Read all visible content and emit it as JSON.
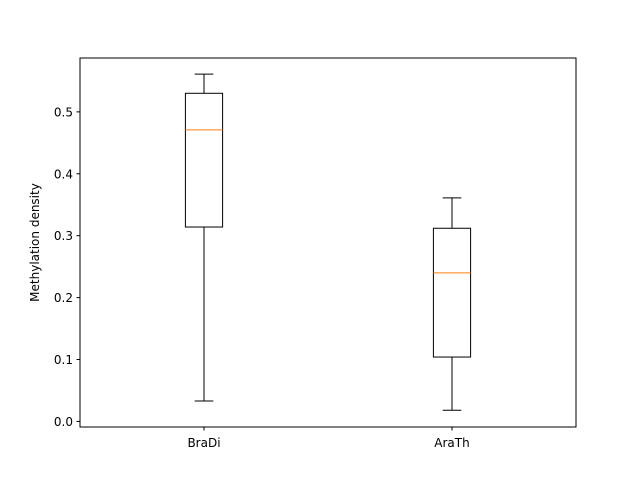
{
  "chart_data": {
    "type": "box",
    "title": "",
    "xlabel": "",
    "ylabel": "Methylation density",
    "ylim": [
      -0.009,
      0.587
    ],
    "yticks": [
      0.0,
      0.1,
      0.2,
      0.3,
      0.4,
      0.5
    ],
    "ytick_labels": [
      "0.0",
      "0.1",
      "0.2",
      "0.3",
      "0.4",
      "0.5"
    ],
    "grid": false,
    "legend": "none",
    "categories": [
      "BraDi",
      "AraTh"
    ],
    "boxes": [
      {
        "category": "BraDi",
        "whisker_low": 0.033,
        "q1": 0.314,
        "median": 0.471,
        "q3": 0.53,
        "whisker_high": 0.561
      },
      {
        "category": "AraTh",
        "whisker_low": 0.018,
        "q1": 0.104,
        "median": 0.24,
        "q3": 0.312,
        "whisker_high": 0.361
      }
    ],
    "colors": {
      "box": "#000000",
      "median": "#ff7f0e",
      "axes": "#000000"
    }
  }
}
